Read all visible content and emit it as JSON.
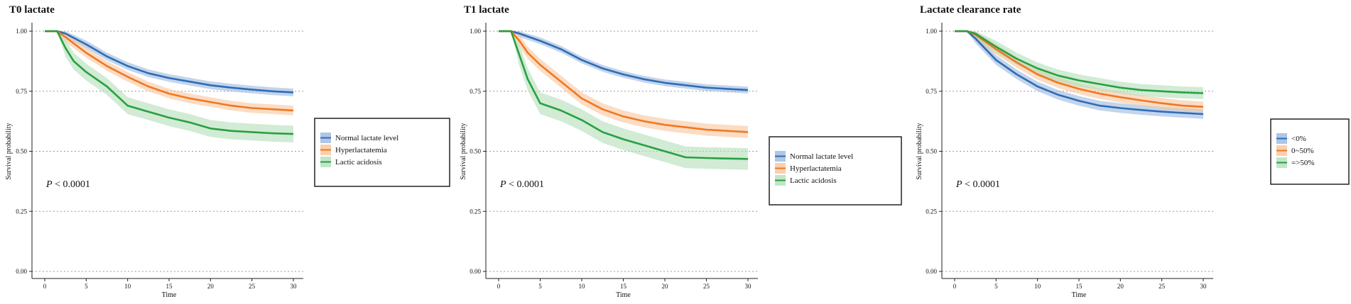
{
  "chart_data": [
    {
      "type": "line",
      "title": "T0 lactate",
      "xlabel": "Time",
      "ylabel": "Survival probability",
      "xlim": [
        0,
        30
      ],
      "ylim": [
        0,
        1
      ],
      "x_ticks": [
        "0",
        "5",
        "10",
        "15",
        "20",
        "25",
        "30"
      ],
      "y_ticks": [
        "0.00",
        "0.25",
        "0.50",
        "0.75",
        "1.00"
      ],
      "grid": "horizontal dotted",
      "annotation": {
        "italic": "P",
        "text": "< 0.0001"
      },
      "legend_position": "right",
      "series": [
        {
          "name": "Normal lactate level",
          "color": "#2e6db5",
          "band_color": "#9bb8e0",
          "x": [
            0,
            1.5,
            2.5,
            5,
            7.5,
            10,
            12.5,
            15,
            17.5,
            20,
            22.5,
            25,
            27.5,
            30
          ],
          "y": [
            1.0,
            1.0,
            0.99,
            0.945,
            0.895,
            0.855,
            0.825,
            0.805,
            0.79,
            0.775,
            0.765,
            0.757,
            0.75,
            0.745
          ],
          "band": 0.016
        },
        {
          "name": "Hyperlactatemia",
          "color": "#f07820",
          "band_color": "#f8c49c",
          "x": [
            0,
            1.5,
            2.5,
            5,
            7.5,
            10,
            12.5,
            15,
            17.5,
            20,
            22.5,
            25,
            27.5,
            30
          ],
          "y": [
            1.0,
            1.0,
            0.975,
            0.91,
            0.855,
            0.81,
            0.77,
            0.74,
            0.72,
            0.705,
            0.69,
            0.68,
            0.675,
            0.67
          ],
          "band": 0.02
        },
        {
          "name": "Lactic acidosis",
          "color": "#28a040",
          "band_color": "#b3deb9",
          "x": [
            0,
            1.5,
            2.5,
            3.5,
            5,
            7.5,
            10,
            12.5,
            15,
            17.5,
            20,
            22.5,
            25,
            27.5,
            30
          ],
          "y": [
            1.0,
            1.0,
            0.93,
            0.875,
            0.83,
            0.77,
            0.69,
            0.665,
            0.64,
            0.62,
            0.595,
            0.585,
            0.58,
            0.575,
            0.572
          ],
          "band": 0.035
        }
      ]
    },
    {
      "type": "line",
      "title": "T1 lactate",
      "xlabel": "Time",
      "ylabel": "Survival probability",
      "xlim": [
        0,
        30
      ],
      "ylim": [
        0,
        1
      ],
      "x_ticks": [
        "0",
        "5",
        "10",
        "15",
        "20",
        "25",
        "30"
      ],
      "y_ticks": [
        "0.00",
        "0.25",
        "0.50",
        "0.75",
        "1.00"
      ],
      "grid": "horizontal dotted",
      "annotation": {
        "italic": "P",
        "text": "< 0.0001"
      },
      "legend_position": "right",
      "series": [
        {
          "name": "Normal lactate level",
          "color": "#2e6db5",
          "band_color": "#9bb8e0",
          "x": [
            0,
            1.5,
            2.5,
            5,
            7.5,
            10,
            12.5,
            15,
            17.5,
            20,
            22.5,
            25,
            27.5,
            30
          ],
          "y": [
            1.0,
            1.0,
            0.99,
            0.96,
            0.925,
            0.88,
            0.845,
            0.82,
            0.8,
            0.785,
            0.775,
            0.765,
            0.76,
            0.755
          ],
          "band": 0.014
        },
        {
          "name": "Hyperlactatemia",
          "color": "#f07820",
          "band_color": "#f8c49c",
          "x": [
            0,
            1.5,
            2.5,
            3.5,
            5,
            7.5,
            10,
            12.5,
            15,
            17.5,
            20,
            22.5,
            25,
            27.5,
            30
          ],
          "y": [
            1.0,
            1.0,
            0.96,
            0.91,
            0.86,
            0.79,
            0.72,
            0.675,
            0.645,
            0.625,
            0.61,
            0.6,
            0.59,
            0.585,
            0.58
          ],
          "band": 0.025
        },
        {
          "name": "Lactic acidosis",
          "color": "#28a040",
          "band_color": "#b3deb9",
          "x": [
            0,
            1.5,
            2.5,
            3.5,
            5,
            7.5,
            10,
            12.5,
            15,
            17.5,
            20,
            22.5,
            25,
            27.5,
            30
          ],
          "y": [
            1.0,
            1.0,
            0.9,
            0.8,
            0.7,
            0.67,
            0.63,
            0.58,
            0.55,
            0.525,
            0.5,
            0.475,
            0.472,
            0.47,
            0.468
          ],
          "band": 0.045
        }
      ]
    },
    {
      "type": "line",
      "title": "Lactate clearance rate",
      "xlabel": "Time",
      "ylabel": "Survival probability",
      "xlim": [
        0,
        30
      ],
      "ylim": [
        0,
        1
      ],
      "x_ticks": [
        "0",
        "5",
        "10",
        "15",
        "20",
        "25",
        "30"
      ],
      "y_ticks": [
        "0.00",
        "0.25",
        "0.50",
        "0.75",
        "1.00"
      ],
      "grid": "horizontal dotted",
      "annotation": {
        "italic": "P",
        "text": "< 0.0001"
      },
      "legend_position": "right",
      "series": [
        {
          "name": "<0%",
          "color": "#2e6db5",
          "band_color": "#9bb8e0",
          "x": [
            0,
            1.5,
            2.5,
            5,
            7.5,
            10,
            12.5,
            15,
            17.5,
            20,
            22.5,
            25,
            27.5,
            30
          ],
          "y": [
            1.0,
            1.0,
            0.97,
            0.88,
            0.82,
            0.77,
            0.735,
            0.71,
            0.69,
            0.68,
            0.672,
            0.665,
            0.66,
            0.655
          ],
          "band": 0.02
        },
        {
          "name": "0~50%",
          "color": "#f07820",
          "band_color": "#f8c49c",
          "x": [
            0,
            1.5,
            2.5,
            5,
            7.5,
            10,
            12.5,
            15,
            17.5,
            20,
            22.5,
            25,
            27.5,
            30
          ],
          "y": [
            1.0,
            1.0,
            0.985,
            0.925,
            0.87,
            0.82,
            0.785,
            0.76,
            0.74,
            0.725,
            0.712,
            0.7,
            0.69,
            0.685
          ],
          "band": 0.022
        },
        {
          "name": "=>50%",
          "color": "#28a040",
          "band_color": "#b3deb9",
          "x": [
            0,
            1.5,
            2.5,
            5,
            7.5,
            10,
            12.5,
            15,
            17.5,
            20,
            22.5,
            25,
            27.5,
            30
          ],
          "y": [
            1.0,
            1.0,
            0.99,
            0.935,
            0.885,
            0.845,
            0.815,
            0.795,
            0.78,
            0.765,
            0.755,
            0.75,
            0.745,
            0.742
          ],
          "band": 0.025
        }
      ]
    }
  ]
}
